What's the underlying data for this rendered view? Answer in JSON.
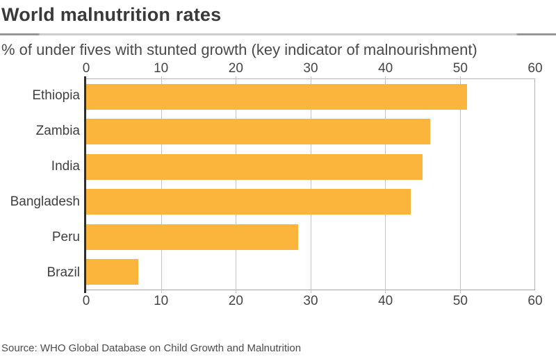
{
  "header": {
    "title": "World malnutrition rates",
    "subtitle": "% of under fives with stunted growth (key indicator of malnourishment)"
  },
  "chart_data": {
    "type": "bar",
    "orientation": "horizontal",
    "title": "World malnutrition rates",
    "subtitle": "% of under fives with stunted growth (key indicator of malnourishment)",
    "categories": [
      "Ethiopia",
      "Zambia",
      "India",
      "Bangladesh",
      "Peru",
      "Brazil"
    ],
    "values": [
      51,
      46,
      45,
      43.4,
      28.4,
      7
    ],
    "xlabel": "",
    "ylabel": "",
    "xlim": [
      0,
      60
    ],
    "x_ticks": [
      0,
      10,
      20,
      30,
      40,
      50,
      60
    ],
    "grid": true,
    "legend": false,
    "bar_color": "#FCB53C"
  },
  "footer": {
    "source": "Source: WHO Global Database on Child Growth and Malnutrition"
  }
}
